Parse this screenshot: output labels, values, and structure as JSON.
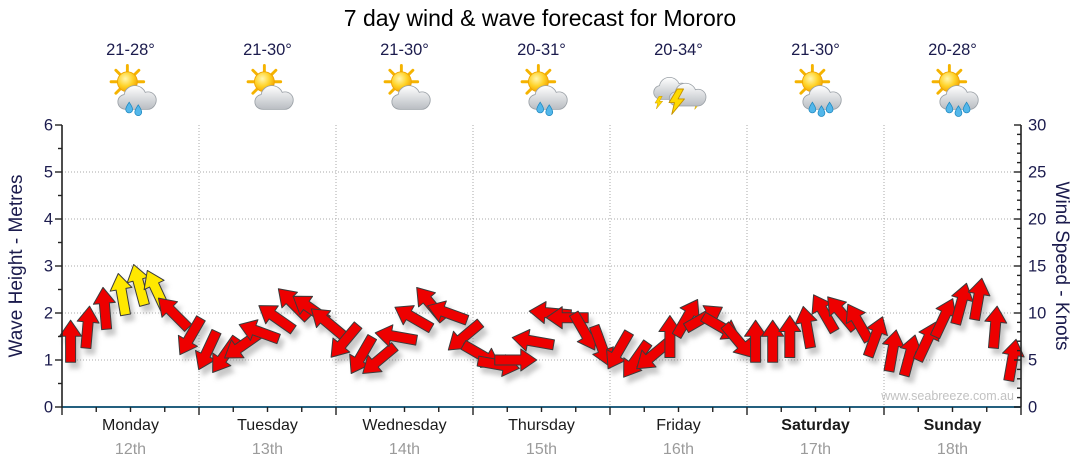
{
  "title": "7 day wind & wave forecast for Mororo",
  "watermark": "www.seabreeze.com.au",
  "days": [
    {
      "name": "Monday",
      "date": "12th",
      "temp": "21-28°",
      "icon": "sun-cloud-rain-2",
      "weekend": false
    },
    {
      "name": "Tuesday",
      "date": "13th",
      "temp": "21-30°",
      "icon": "sun-cloud",
      "weekend": false
    },
    {
      "name": "Wednesday",
      "date": "14th",
      "temp": "21-30°",
      "icon": "sun-cloud",
      "weekend": false
    },
    {
      "name": "Thursday",
      "date": "15th",
      "temp": "20-31°",
      "icon": "sun-cloud-rain-2",
      "weekend": false
    },
    {
      "name": "Friday",
      "date": "16th",
      "temp": "20-34°",
      "icon": "storm",
      "weekend": false
    },
    {
      "name": "Saturday",
      "date": "17th",
      "temp": "21-30°",
      "icon": "sun-cloud-rain-3",
      "weekend": true
    },
    {
      "name": "Sunday",
      "date": "18th",
      "temp": "20-28°",
      "icon": "sun-cloud-rain-3",
      "weekend": true
    }
  ],
  "axes": {
    "left": {
      "label": "Wave Height - Metres",
      "ticks": [
        0,
        1,
        2,
        3,
        4,
        5,
        6
      ],
      "range": [
        0,
        6
      ]
    },
    "right": {
      "label": "Wind Speed - Knots",
      "ticks": [
        0,
        5,
        10,
        15,
        20,
        25,
        30
      ],
      "range": [
        0,
        30
      ]
    }
  },
  "colors": {
    "arrow_red": "#EE0000",
    "arrow_yellow": "#FFE800",
    "arrow_outline": "#3a3a3a",
    "grid": "#aaaaaa",
    "x_axis_line": "#24607f",
    "y_axis_line": "#222222",
    "axis_text": "#1b1b4d",
    "day_text": "#1a1a1a",
    "date_text": "#9b9b9b",
    "watermark_text": "#c2c2c2"
  },
  "chart_data": {
    "type": "wind-arrows",
    "title": "7 day wind & wave forecast for Mororo",
    "x_categories": [
      "Monday 12th",
      "Tuesday 13th",
      "Wednesday 14th",
      "Thursday 15th",
      "Friday 16th",
      "Saturday 17th",
      "Sunday 18th"
    ],
    "left_axis": {
      "label": "Wave Height - Metres",
      "range": [
        0,
        6
      ],
      "gridlines_at": [
        1,
        2,
        3,
        4,
        5
      ]
    },
    "right_axis": {
      "label": "Wind Speed - Knots",
      "range": [
        0,
        30
      ]
    },
    "interval_hours": 3,
    "point_format": [
      "day_index",
      "hour",
      "wind_speed_knots",
      "arrow_angle_deg_0_is_up",
      "strong_flag_Y_is_yellow"
    ],
    "series": [
      {
        "name": "Wind speed & direction",
        "points": [
          [
            0,
            0,
            7,
            0
          ],
          [
            0,
            3,
            8.5,
            5
          ],
          [
            0,
            6,
            10.5,
            355
          ],
          [
            0,
            9,
            12,
            350,
            "Y"
          ],
          [
            0,
            12,
            13,
            345,
            "Y"
          ],
          [
            0,
            15,
            12.5,
            335,
            "Y"
          ],
          [
            0,
            18,
            10,
            315
          ],
          [
            0,
            21,
            7.5,
            210
          ],
          [
            1,
            0,
            6,
            205
          ],
          [
            1,
            3,
            5.5,
            215
          ],
          [
            1,
            6,
            6.5,
            235
          ],
          [
            1,
            9,
            8,
            290
          ],
          [
            1,
            12,
            9.5,
            305
          ],
          [
            1,
            15,
            11,
            315
          ],
          [
            1,
            18,
            10.5,
            305
          ],
          [
            1,
            21,
            9,
            310
          ],
          [
            2,
            0,
            7,
            220
          ],
          [
            2,
            3,
            5.5,
            210
          ],
          [
            2,
            6,
            5,
            230
          ],
          [
            2,
            9,
            7.5,
            280
          ],
          [
            2,
            12,
            9.5,
            300
          ],
          [
            2,
            15,
            11,
            320
          ],
          [
            2,
            18,
            10,
            290
          ],
          [
            2,
            21,
            7.5,
            230
          ],
          [
            3,
            0,
            5.5,
            120
          ],
          [
            3,
            3,
            4.5,
            100
          ],
          [
            3,
            6,
            5,
            90
          ],
          [
            3,
            9,
            7,
            280
          ],
          [
            3,
            12,
            10,
            275
          ],
          [
            3,
            15,
            9.5,
            270
          ],
          [
            3,
            18,
            8,
            150
          ],
          [
            3,
            21,
            6.5,
            160
          ],
          [
            4,
            0,
            6,
            210
          ],
          [
            4,
            3,
            5,
            215
          ],
          [
            4,
            6,
            5.5,
            230
          ],
          [
            4,
            9,
            7.5,
            0
          ],
          [
            4,
            12,
            9.5,
            30
          ],
          [
            4,
            15,
            9.5,
            60
          ],
          [
            4,
            18,
            8.5,
            120
          ],
          [
            4,
            21,
            7,
            140
          ],
          [
            5,
            0,
            7,
            0
          ],
          [
            5,
            3,
            7,
            0
          ],
          [
            5,
            6,
            7.5,
            0
          ],
          [
            5,
            9,
            8.5,
            350
          ],
          [
            5,
            12,
            10,
            330
          ],
          [
            5,
            15,
            10,
            320
          ],
          [
            5,
            18,
            9,
            330
          ],
          [
            5,
            21,
            7.5,
            20
          ],
          [
            6,
            0,
            6,
            10
          ],
          [
            6,
            3,
            5.5,
            15
          ],
          [
            6,
            6,
            7,
            25
          ],
          [
            6,
            9,
            9.5,
            25
          ],
          [
            6,
            12,
            11,
            15
          ],
          [
            6,
            15,
            11.5,
            10
          ],
          [
            6,
            18,
            8.5,
            5
          ],
          [
            6,
            21,
            5,
            10
          ]
        ]
      }
    ]
  }
}
